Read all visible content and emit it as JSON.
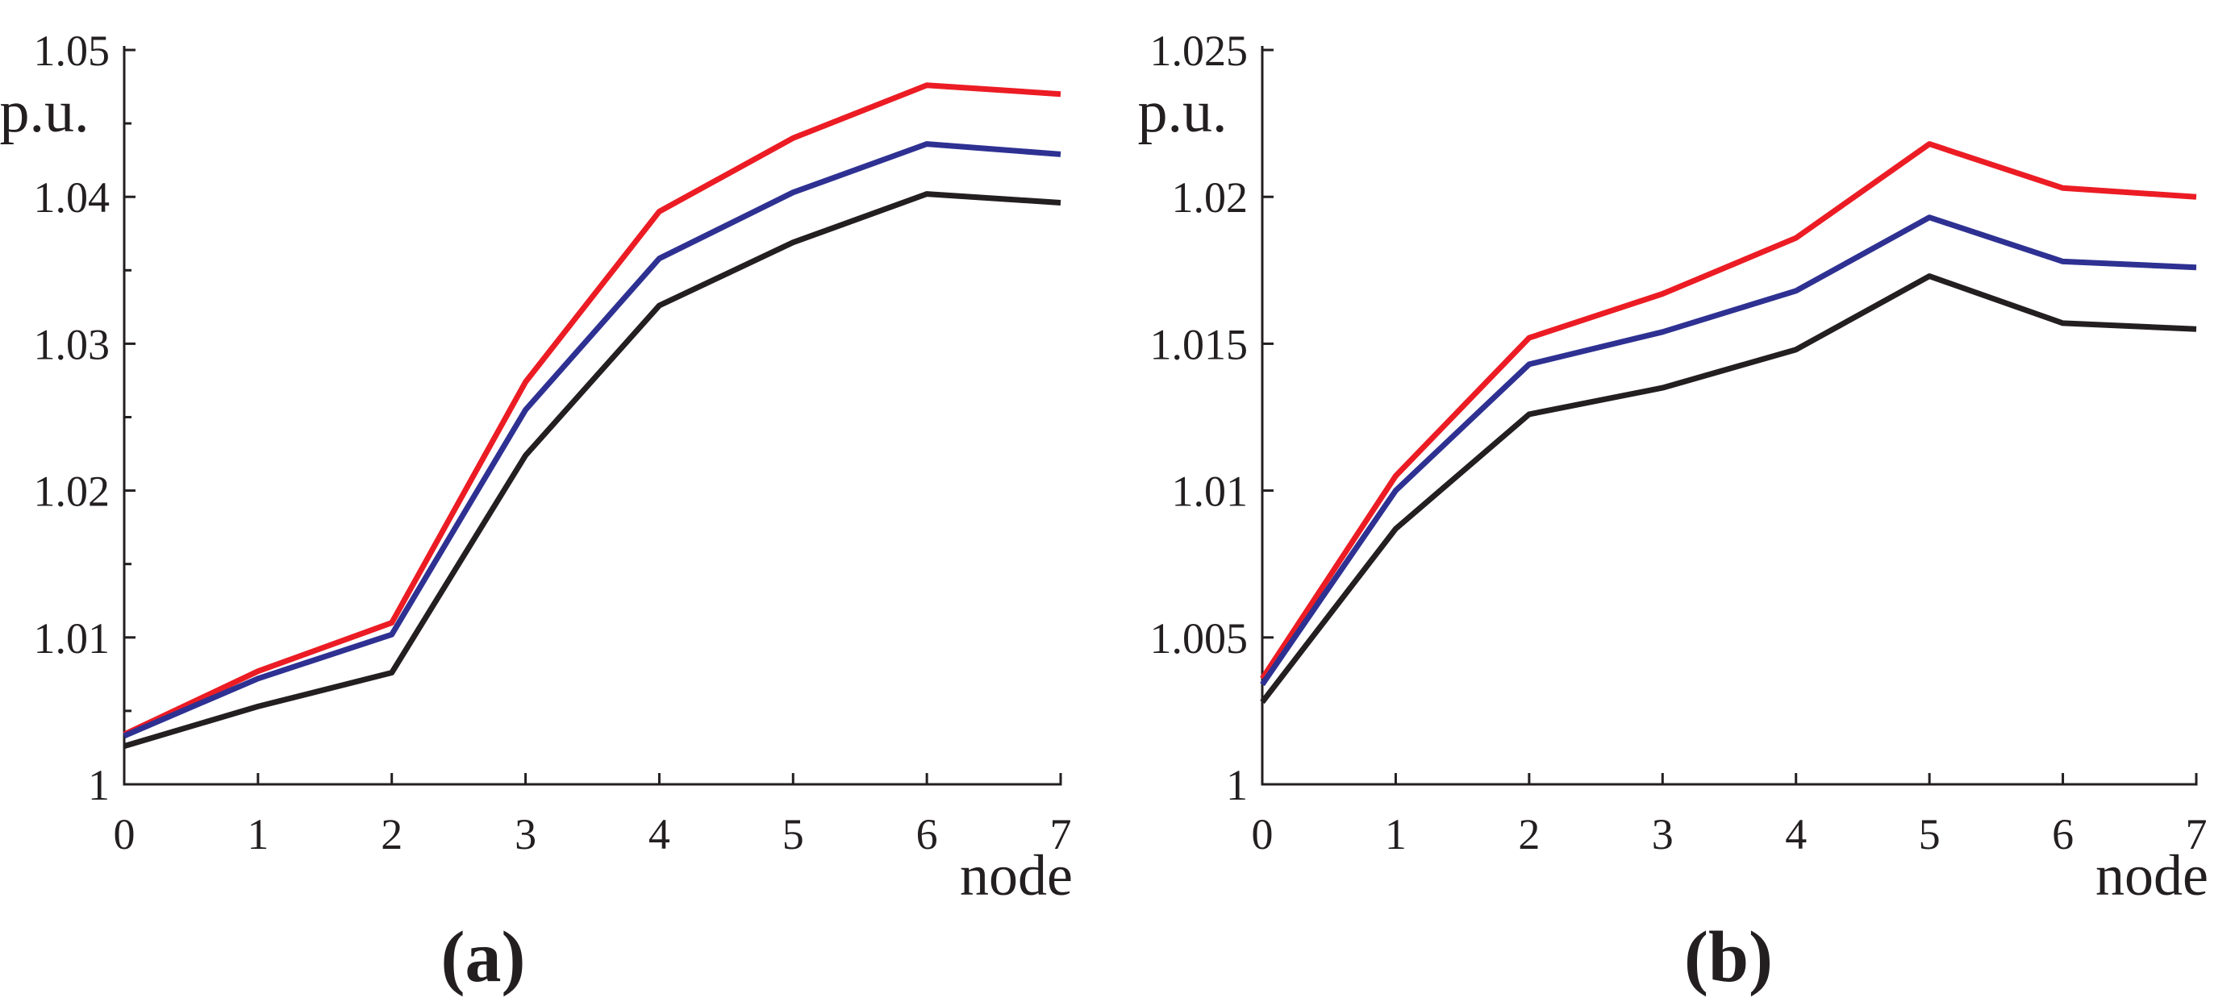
{
  "figure": {
    "background": "#ffffff",
    "axis_color": "#231F20",
    "text_color": "#231F20"
  },
  "chart_data": [
    {
      "id": "a",
      "type": "line",
      "sublabel": "(a)",
      "ylabel": "p.u.",
      "xlabel": "node",
      "x": [
        0,
        1,
        2,
        3,
        4,
        5,
        6,
        7
      ],
      "xlim": [
        0,
        7
      ],
      "ylim": [
        1.0,
        1.05
      ],
      "grid": false,
      "legend": "none",
      "yticks": [
        {
          "value": 1.0,
          "label": "1",
          "tick": false,
          "major": true
        },
        {
          "value": 1.005,
          "label": "",
          "tick": true,
          "major": false
        },
        {
          "value": 1.01,
          "label": "1.01",
          "tick": true,
          "major": true
        },
        {
          "value": 1.015,
          "label": "",
          "tick": true,
          "major": false
        },
        {
          "value": 1.02,
          "label": "1.02",
          "tick": true,
          "major": true
        },
        {
          "value": 1.025,
          "label": "",
          "tick": true,
          "major": false
        },
        {
          "value": 1.03,
          "label": "1.03",
          "tick": true,
          "major": true
        },
        {
          "value": 1.035,
          "label": "",
          "tick": true,
          "major": false
        },
        {
          "value": 1.04,
          "label": "1.04",
          "tick": true,
          "major": true
        },
        {
          "value": 1.045,
          "label": "",
          "tick": true,
          "major": false
        },
        {
          "value": 1.05,
          "label": "1.05",
          "tick": true,
          "major": true
        }
      ],
      "xticks": [
        {
          "value": 0,
          "label": "0",
          "tick": false
        },
        {
          "value": 1,
          "label": "1",
          "tick": true
        },
        {
          "value": 2,
          "label": "2",
          "tick": true
        },
        {
          "value": 3,
          "label": "3",
          "tick": true
        },
        {
          "value": 4,
          "label": "4",
          "tick": true
        },
        {
          "value": 5,
          "label": "5",
          "tick": true
        },
        {
          "value": 6,
          "label": "6",
          "tick": true
        },
        {
          "value": 7,
          "label": "7",
          "tick": true
        }
      ],
      "series": [
        {
          "name": "red",
          "color": "#EC1C24",
          "values": [
            1.0034,
            1.0077,
            1.011,
            1.0274,
            1.039,
            1.044,
            1.0476,
            1.047
          ]
        },
        {
          "name": "blue",
          "color": "#2E3192",
          "values": [
            1.0033,
            1.0072,
            1.0102,
            1.0255,
            1.0358,
            1.0403,
            1.0436,
            1.0429
          ]
        },
        {
          "name": "black",
          "color": "#231F20",
          "values": [
            1.0026,
            1.0053,
            1.0076,
            1.0224,
            1.0326,
            1.0369,
            1.0402,
            1.0396
          ]
        }
      ]
    },
    {
      "id": "b",
      "type": "line",
      "sublabel": "(b)",
      "ylabel": "p.u.",
      "xlabel": "node",
      "x": [
        0,
        1,
        2,
        3,
        4,
        5,
        6,
        7
      ],
      "xlim": [
        0,
        7
      ],
      "ylim": [
        1.0,
        1.025
      ],
      "grid": false,
      "legend": "none",
      "yticks": [
        {
          "value": 1.0,
          "label": "1",
          "tick": false,
          "major": true
        },
        {
          "value": 1.005,
          "label": "1.005",
          "tick": true,
          "major": true
        },
        {
          "value": 1.01,
          "label": "1.01",
          "tick": true,
          "major": true
        },
        {
          "value": 1.015,
          "label": "1.015",
          "tick": true,
          "major": true
        },
        {
          "value": 1.02,
          "label": "1.02",
          "tick": true,
          "major": true
        },
        {
          "value": 1.025,
          "label": "1.025",
          "tick": true,
          "major": true
        }
      ],
      "xticks": [
        {
          "value": 0,
          "label": "0",
          "tick": false
        },
        {
          "value": 1,
          "label": "1",
          "tick": true
        },
        {
          "value": 2,
          "label": "2",
          "tick": true
        },
        {
          "value": 3,
          "label": "3",
          "tick": true
        },
        {
          "value": 4,
          "label": "4",
          "tick": true
        },
        {
          "value": 5,
          "label": "5",
          "tick": true
        },
        {
          "value": 6,
          "label": "6",
          "tick": true
        },
        {
          "value": 7,
          "label": "7",
          "tick": true
        }
      ],
      "series": [
        {
          "name": "red",
          "color": "#EC1C24",
          "values": [
            1.0036,
            1.0105,
            1.0152,
            1.0167,
            1.0186,
            1.0218,
            1.0203,
            1.02
          ]
        },
        {
          "name": "blue",
          "color": "#2E3192",
          "values": [
            1.0034,
            1.01,
            1.0143,
            1.0154,
            1.0168,
            1.0193,
            1.0178,
            1.0176
          ]
        },
        {
          "name": "black",
          "color": "#231F20",
          "values": [
            1.0028,
            1.0087,
            1.0126,
            1.0135,
            1.0148,
            1.0173,
            1.0157,
            1.0155
          ]
        }
      ]
    }
  ]
}
